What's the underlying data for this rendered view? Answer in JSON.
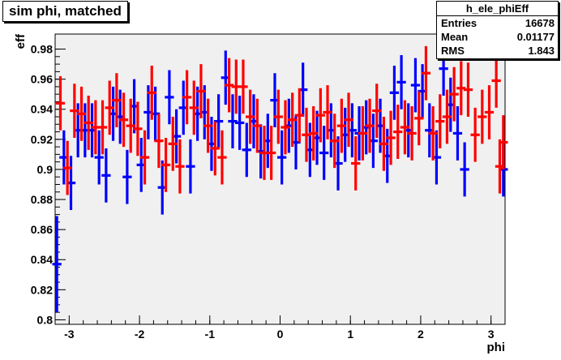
{
  "title": "sim phi, matched",
  "stats": {
    "name": "h_ele_phiEff",
    "rows": [
      {
        "label": "Entries",
        "value": "16678"
      },
      {
        "label": "Mean",
        "value": "0.01177"
      },
      {
        "label": "RMS",
        "value": "1.843"
      }
    ]
  },
  "colors": {
    "frame_bg": "#f0f0f0",
    "series_blue": "#0000ff",
    "series_red": "#ff0000",
    "axis": "#000000"
  },
  "chart_data": {
    "type": "scatter",
    "xlabel": "phi",
    "ylabel": "eff",
    "xlim": [
      -3.2,
      3.2
    ],
    "ylim": [
      0.797,
      0.99
    ],
    "x_ticks": [
      -3,
      -2,
      -1,
      0,
      1,
      2,
      3
    ],
    "y_ticks": [
      0.8,
      0.82,
      0.84,
      0.86,
      0.88,
      0.9,
      0.92,
      0.94,
      0.96,
      0.98
    ],
    "y_tick_labels": [
      "0.8",
      "0.82",
      "0.84",
      "0.86",
      "0.88",
      "0.9",
      "0.92",
      "0.94",
      "0.96",
      "0.98"
    ],
    "grid": false,
    "legend": "none",
    "series": [
      {
        "color": "#0000ff",
        "points": [
          {
            "x": -3.175,
            "y": 0.837,
            "err": 0.032
          },
          {
            "x": -3.075,
            "y": 0.908,
            "err": 0.018
          },
          {
            "x": -2.975,
            "y": 0.891,
            "err": 0.018
          },
          {
            "x": -2.875,
            "y": 0.926,
            "err": 0.018
          },
          {
            "x": -2.775,
            "y": 0.926,
            "err": 0.018
          },
          {
            "x": -2.675,
            "y": 0.926,
            "err": 0.018
          },
          {
            "x": -2.575,
            "y": 0.908,
            "err": 0.018
          },
          {
            "x": -2.475,
            "y": 0.896,
            "err": 0.018
          },
          {
            "x": -2.375,
            "y": 0.937,
            "err": 0.018
          },
          {
            "x": -2.275,
            "y": 0.935,
            "err": 0.018
          },
          {
            "x": -2.175,
            "y": 0.895,
            "err": 0.018
          },
          {
            "x": -2.075,
            "y": 0.942,
            "err": 0.018
          },
          {
            "x": -1.975,
            "y": 0.903,
            "err": 0.018
          },
          {
            "x": -1.875,
            "y": 0.938,
            "err": 0.018
          },
          {
            "x": -1.775,
            "y": 0.937,
            "err": 0.018
          },
          {
            "x": -1.675,
            "y": 0.888,
            "err": 0.018
          },
          {
            "x": -1.575,
            "y": 0.948,
            "err": 0.018
          },
          {
            "x": -1.475,
            "y": 0.922,
            "err": 0.018
          },
          {
            "x": -1.375,
            "y": 0.941,
            "err": 0.018
          },
          {
            "x": -1.275,
            "y": 0.902,
            "err": 0.018
          },
          {
            "x": -1.175,
            "y": 0.937,
            "err": 0.018
          },
          {
            "x": -1.075,
            "y": 0.938,
            "err": 0.018
          },
          {
            "x": -0.975,
            "y": 0.917,
            "err": 0.018
          },
          {
            "x": -0.875,
            "y": 0.932,
            "err": 0.018
          },
          {
            "x": -0.775,
            "y": 0.961,
            "err": 0.018
          },
          {
            "x": -0.675,
            "y": 0.932,
            "err": 0.018
          },
          {
            "x": -0.575,
            "y": 0.931,
            "err": 0.018
          },
          {
            "x": -0.475,
            "y": 0.913,
            "err": 0.018
          },
          {
            "x": -0.375,
            "y": 0.932,
            "err": 0.018
          },
          {
            "x": -0.275,
            "y": 0.912,
            "err": 0.018
          },
          {
            "x": -0.175,
            "y": 0.919,
            "err": 0.018
          },
          {
            "x": -0.075,
            "y": 0.946,
            "err": 0.018
          },
          {
            "x": 0.025,
            "y": 0.908,
            "err": 0.018
          },
          {
            "x": 0.125,
            "y": 0.929,
            "err": 0.018
          },
          {
            "x": 0.225,
            "y": 0.918,
            "err": 0.018
          },
          {
            "x": 0.325,
            "y": 0.953,
            "err": 0.018
          },
          {
            "x": 0.425,
            "y": 0.913,
            "err": 0.018
          },
          {
            "x": 0.525,
            "y": 0.921,
            "err": 0.018
          },
          {
            "x": 0.625,
            "y": 0.911,
            "err": 0.018
          },
          {
            "x": 0.725,
            "y": 0.926,
            "err": 0.018
          },
          {
            "x": 0.825,
            "y": 0.904,
            "err": 0.018
          },
          {
            "x": 0.925,
            "y": 0.923,
            "err": 0.018
          },
          {
            "x": 1.025,
            "y": 0.926,
            "err": 0.018
          },
          {
            "x": 1.125,
            "y": 0.924,
            "err": 0.018
          },
          {
            "x": 1.225,
            "y": 0.928,
            "err": 0.018
          },
          {
            "x": 1.325,
            "y": 0.919,
            "err": 0.018
          },
          {
            "x": 1.425,
            "y": 0.929,
            "err": 0.018
          },
          {
            "x": 1.525,
            "y": 0.909,
            "err": 0.018
          },
          {
            "x": 1.625,
            "y": 0.951,
            "err": 0.018
          },
          {
            "x": 1.725,
            "y": 0.958,
            "err": 0.018
          },
          {
            "x": 1.825,
            "y": 0.926,
            "err": 0.018
          },
          {
            "x": 1.925,
            "y": 0.956,
            "err": 0.018
          },
          {
            "x": 2.025,
            "y": 0.952,
            "err": 0.018
          },
          {
            "x": 2.125,
            "y": 0.926,
            "err": 0.018
          },
          {
            "x": 2.225,
            "y": 0.908,
            "err": 0.018
          },
          {
            "x": 2.325,
            "y": 0.967,
            "err": 0.018
          },
          {
            "x": 2.425,
            "y": 0.943,
            "err": 0.018
          },
          {
            "x": 2.525,
            "y": 0.924,
            "err": 0.018
          },
          {
            "x": 2.625,
            "y": 0.9,
            "err": 0.018
          },
          {
            "x": 3.175,
            "y": 0.9,
            "err": 0.018
          }
        ]
      },
      {
        "color": "#ff0000",
        "points": [
          {
            "x": -3.125,
            "y": 0.944,
            "err": 0.018
          },
          {
            "x": -3.025,
            "y": 0.901,
            "err": 0.018
          },
          {
            "x": -2.925,
            "y": 0.939,
            "err": 0.018
          },
          {
            "x": -2.825,
            "y": 0.937,
            "err": 0.018
          },
          {
            "x": -2.725,
            "y": 0.931,
            "err": 0.018
          },
          {
            "x": -2.625,
            "y": 0.928,
            "err": 0.018
          },
          {
            "x": -2.525,
            "y": 0.928,
            "err": 0.018
          },
          {
            "x": -2.425,
            "y": 0.941,
            "err": 0.018
          },
          {
            "x": -2.325,
            "y": 0.946,
            "err": 0.018
          },
          {
            "x": -2.225,
            "y": 0.933,
            "err": 0.018
          },
          {
            "x": -2.125,
            "y": 0.929,
            "err": 0.018
          },
          {
            "x": -2.025,
            "y": 0.927,
            "err": 0.018
          },
          {
            "x": -1.925,
            "y": 0.908,
            "err": 0.018
          },
          {
            "x": -1.825,
            "y": 0.951,
            "err": 0.018
          },
          {
            "x": -1.725,
            "y": 0.919,
            "err": 0.018
          },
          {
            "x": -1.625,
            "y": 0.903,
            "err": 0.018
          },
          {
            "x": -1.525,
            "y": 0.917,
            "err": 0.018
          },
          {
            "x": -1.425,
            "y": 0.902,
            "err": 0.018
          },
          {
            "x": -1.325,
            "y": 0.948,
            "err": 0.018
          },
          {
            "x": -1.225,
            "y": 0.941,
            "err": 0.018
          },
          {
            "x": -1.125,
            "y": 0.952,
            "err": 0.018
          },
          {
            "x": -1.025,
            "y": 0.929,
            "err": 0.018
          },
          {
            "x": -0.925,
            "y": 0.914,
            "err": 0.018
          },
          {
            "x": -0.825,
            "y": 0.908,
            "err": 0.018
          },
          {
            "x": -0.725,
            "y": 0.956,
            "err": 0.018
          },
          {
            "x": -0.625,
            "y": 0.955,
            "err": 0.018
          },
          {
            "x": -0.525,
            "y": 0.955,
            "err": 0.018
          },
          {
            "x": -0.425,
            "y": 0.935,
            "err": 0.018
          },
          {
            "x": -0.325,
            "y": 0.929,
            "err": 0.018
          },
          {
            "x": -0.225,
            "y": 0.911,
            "err": 0.018
          },
          {
            "x": -0.125,
            "y": 0.911,
            "err": 0.018
          },
          {
            "x": -0.025,
            "y": 0.935,
            "err": 0.018
          },
          {
            "x": 0.075,
            "y": 0.928,
            "err": 0.018
          },
          {
            "x": 0.175,
            "y": 0.933,
            "err": 0.018
          },
          {
            "x": 0.275,
            "y": 0.936,
            "err": 0.018
          },
          {
            "x": 0.375,
            "y": 0.923,
            "err": 0.018
          },
          {
            "x": 0.475,
            "y": 0.924,
            "err": 0.018
          },
          {
            "x": 0.575,
            "y": 0.936,
            "err": 0.018
          },
          {
            "x": 0.675,
            "y": 0.938,
            "err": 0.018
          },
          {
            "x": 0.775,
            "y": 0.919,
            "err": 0.018
          },
          {
            "x": 0.875,
            "y": 0.929,
            "err": 0.018
          },
          {
            "x": 0.975,
            "y": 0.933,
            "err": 0.018
          },
          {
            "x": 1.075,
            "y": 0.904,
            "err": 0.018
          },
          {
            "x": 1.175,
            "y": 0.924,
            "err": 0.018
          },
          {
            "x": 1.275,
            "y": 0.929,
            "err": 0.018
          },
          {
            "x": 1.375,
            "y": 0.939,
            "err": 0.018
          },
          {
            "x": 1.475,
            "y": 0.917,
            "err": 0.018
          },
          {
            "x": 1.575,
            "y": 0.921,
            "err": 0.018
          },
          {
            "x": 1.675,
            "y": 0.925,
            "err": 0.018
          },
          {
            "x": 1.775,
            "y": 0.928,
            "err": 0.018
          },
          {
            "x": 1.875,
            "y": 0.924,
            "err": 0.018
          },
          {
            "x": 1.975,
            "y": 0.934,
            "err": 0.018
          },
          {
            "x": 2.075,
            "y": 0.964,
            "err": 0.018
          },
          {
            "x": 2.175,
            "y": 0.924,
            "err": 0.018
          },
          {
            "x": 2.275,
            "y": 0.932,
            "err": 0.018
          },
          {
            "x": 2.375,
            "y": 0.935,
            "err": 0.018
          },
          {
            "x": 2.475,
            "y": 0.95,
            "err": 0.018
          },
          {
            "x": 2.575,
            "y": 0.954,
            "err": 0.018
          },
          {
            "x": 2.675,
            "y": 0.953,
            "err": 0.018
          },
          {
            "x": 2.775,
            "y": 0.923,
            "err": 0.018
          },
          {
            "x": 2.875,
            "y": 0.935,
            "err": 0.018
          },
          {
            "x": 2.975,
            "y": 0.938,
            "err": 0.018
          },
          {
            "x": 3.075,
            "y": 0.959,
            "err": 0.018
          },
          {
            "x": 3.125,
            "y": 0.902,
            "err": 0.018
          },
          {
            "x": 3.175,
            "y": 0.918,
            "err": 0.018
          }
        ]
      }
    ]
  }
}
